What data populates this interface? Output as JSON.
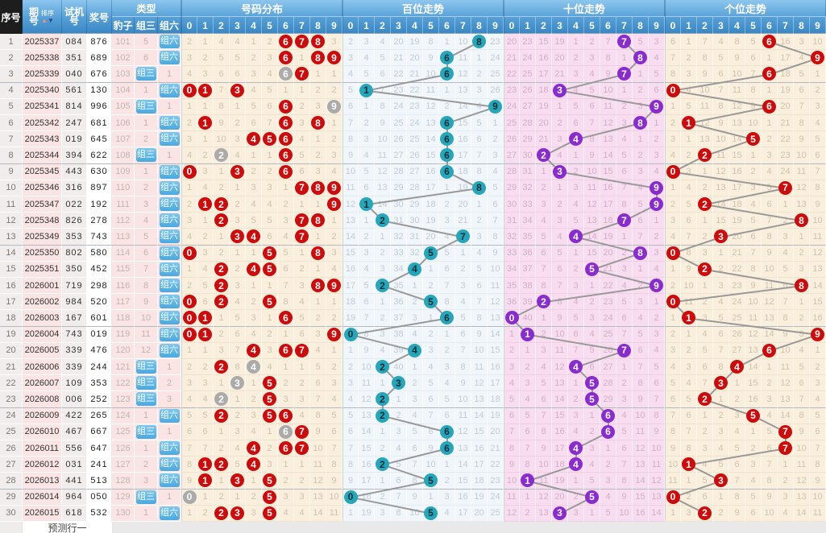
{
  "colors": {
    "header_black_bg": "#1d1d1d",
    "header_blue_top": "#8cc6ee",
    "header_blue_bottom": "#3a87c4",
    "hit_red": "#cf0a0a",
    "hit_gray": "#ababab",
    "hit_teal": "#25a6bb",
    "hit_purple": "#8a2bd0",
    "type_button_blue": "#49a9e0",
    "line_gray": "#999999"
  },
  "header": {
    "seq": "序号",
    "period_l1": "期",
    "period_l2": "号",
    "sort": "排序",
    "test_l1": "试机",
    "test_l2": "号",
    "prize": "奖号",
    "type_group": "类型",
    "type_cols": [
      "豹子",
      "组三",
      "组六"
    ],
    "sections": [
      {
        "key": "fen",
        "title": "号码分布"
      },
      {
        "key": "bai",
        "title": "百位走势"
      },
      {
        "key": "shi",
        "title": "十位走势"
      },
      {
        "key": "ge",
        "title": "个位走势"
      }
    ],
    "digits": [
      "0",
      "1",
      "2",
      "3",
      "4",
      "5",
      "6",
      "7",
      "8",
      "9"
    ]
  },
  "footer": {
    "label": "预测行一"
  },
  "icons": {
    "sort_up": "▲",
    "sort_down": "▼"
  },
  "chart_data": {
    "type": "table",
    "legend": "H=hit circle (red/teal/purple per section), G=gray circle (digit appears twice); plain numbers are miss counts",
    "rows": [
      {
        "seq": "1",
        "period": "2025337",
        "test": "084",
        "prize": "876",
        "baozi": "101",
        "zu3": "5",
        "zu6": "组六",
        "fen": "2,1,4,4,1,2,H6,H7,H8,3",
        "bai": "2,3,4,20,19,8,1,10,H8,23",
        "shi": "20,23,15,19,1,2,7,H7,5,3",
        "ge": "6,1,7,4,8,5,H6,16,3,10"
      },
      {
        "seq": "2",
        "period": "2025338",
        "test": "351",
        "prize": "689",
        "baozi": "102",
        "zu3": "6",
        "zu6": "组六",
        "fen": "3,2,5,5,2,3,H6,1,H8,H9",
        "bai": "3,4,5,21,20,9,H6,11,1,24",
        "shi": "21,24,16,20,2,3,8,1,H8,4",
        "ge": "7,2,8,5,9,6,1,17,4,H9"
      },
      {
        "seq": "3",
        "period": "2025339",
        "test": "040",
        "prize": "676",
        "baozi": "103",
        "zu3": "组三",
        "zu6": "1",
        "fen": "4,3,6,6,3,4,G6,H7,1,1",
        "bai": "4,5,6,22,21,10,H6,12,2,25",
        "shi": "22,25,17,21,3,4,9,H7,1,5",
        "ge": "8,3,9,6,10,7,H6,18,5,1"
      },
      {
        "seq": "4",
        "period": "2025340",
        "test": "561",
        "prize": "130",
        "baozi": "104",
        "zu3": "1",
        "zu6": "组六",
        "fen": "H0,H1,7,H3,4,5,1,1,2,2",
        "bai": "5,H1,7,23,22,11,1,13,3,26",
        "shi": "23,26,18,H3,4,5,10,1,2,6",
        "ge": "H0,4,10,7,11,8,1,19,6,2"
      },
      {
        "seq": "5",
        "period": "2025341",
        "test": "814",
        "prize": "996",
        "baozi": "105",
        "zu3": "组三",
        "zu6": "1",
        "fen": "1,1,8,1,5,6,H6,2,3,G9",
        "bai": "6,1,8,24,23,12,2,14,4,H9",
        "shi": "24,27,19,1,5,6,11,2,3,H9",
        "ge": "1,5,11,8,12,9,H6,20,7,3"
      },
      {
        "seq": "6",
        "period": "2025342",
        "test": "247",
        "prize": "681",
        "baozi": "106",
        "zu3": "1",
        "zu6": "组六",
        "fen": "2,H1,9,2,6,7,H6,3,H8,1",
        "bai": "7,2,9,25,24,13,H6,15,5,1",
        "shi": "25,28,20,2,6,7,12,3,H8,1",
        "ge": "2,H1,12,9,13,10,1,21,8,4"
      },
      {
        "seq": "7",
        "period": "2025343",
        "test": "019",
        "prize": "645",
        "baozi": "107",
        "zu3": "2",
        "zu6": "组六",
        "fen": "3,1,10,3,H4,H5,H6,4,1,2",
        "bai": "8,3,10,26,25,14,H6,16,6,2",
        "shi": "26,29,21,3,H4,8,13,4,1,2",
        "ge": "3,1,13,10,14,H5,2,22,9,5"
      },
      {
        "seq": "8",
        "period": "2025344",
        "test": "394",
        "prize": "622",
        "baozi": "108",
        "zu3": "组三",
        "zu6": "1",
        "fen": "4,2,G2,4,1,1,H6,5,2,3",
        "bai": "9,4,11,27,26,15,H6,17,7,3",
        "shi": "27,30,H2,4,1,9,14,5,2,3",
        "ge": "4,2,H2,11,15,1,3,23,10,6"
      },
      {
        "seq": "9",
        "period": "2025345",
        "test": "443",
        "prize": "630",
        "baozi": "109",
        "zu3": "1",
        "zu6": "组六",
        "fen": "H0,3,1,H3,2,2,H6,6,3,4",
        "bai": "10,5,12,28,27,16,H6,18,8,4",
        "shi": "28,31,1,H3,2,10,15,6,3,4",
        "ge": "H0,3,1,12,16,2,4,24,11,7"
      },
      {
        "seq": "10",
        "period": "2025346",
        "test": "316",
        "prize": "897",
        "baozi": "110",
        "zu3": "2",
        "zu6": "组六",
        "fen": "1,4,2,1,3,3,1,H7,H8,H9",
        "bai": "11,6,13,29,28,17,1,19,H8,5",
        "shi": "29,32,2,1,3,11,16,7,4,H9",
        "ge": "1,4,2,13,17,3,5,H7,12,8"
      },
      {
        "seq": "11",
        "period": "2025347",
        "test": "022",
        "prize": "192",
        "baozi": "111",
        "zu3": "3",
        "zu6": "组六",
        "fen": "2,H1,H2,2,4,4,2,1,1,H9",
        "bai": "12,H1,14,30,29,18,2,20,1,6",
        "shi": "30,33,3,2,4,12,17,8,5,H9",
        "ge": "2,5,H2,14,18,4,6,1,13,9"
      },
      {
        "seq": "12",
        "period": "2025348",
        "test": "826",
        "prize": "278",
        "baozi": "112",
        "zu3": "4",
        "zu6": "组六",
        "fen": "3,1,H2,3,5,5,3,H7,H8,1",
        "bai": "13,1,H2,31,30,19,3,21,2,7",
        "shi": "31,34,4,3,5,13,18,H7,6,1",
        "ge": "3,6,1,15,19,5,7,2,H8,10"
      },
      {
        "seq": "13",
        "period": "2025349",
        "test": "353",
        "prize": "743",
        "baozi": "113",
        "zu3": "5",
        "zu6": "组六",
        "fen": "4,2,1,H3,H4,6,4,H7,1,2",
        "bai": "14,2,1,32,31,20,4,H7,3,8",
        "shi": "32,35,5,4,H4,14,19,1,7,2",
        "ge": "4,7,2,H3,20,6,8,3,1,11"
      },
      {
        "seq": "14",
        "period": "2025350",
        "test": "802",
        "prize": "580",
        "baozi": "114",
        "zu3": "6",
        "zu6": "组六",
        "fen": "H0,3,2,1,1,H5,5,1,H8,3",
        "bai": "15,3,2,33,32,H5,5,1,4,9",
        "shi": "33,36,6,5,1,15,20,2,H8,3",
        "ge": "H0,8,3,1,21,7,9,4,2,12"
      },
      {
        "seq": "15",
        "period": "2025351",
        "test": "350",
        "prize": "452",
        "baozi": "115",
        "zu3": "7",
        "zu6": "组六",
        "fen": "1,4,H2,2,H4,H5,6,2,1,4",
        "bai": "16,4,3,34,H4,1,6,2,5,10",
        "shi": "34,37,7,6,2,H5,21,3,1,4",
        "ge": "1,9,H2,2,22,8,10,5,3,13"
      },
      {
        "seq": "16",
        "period": "2026001",
        "test": "719",
        "prize": "298",
        "baozi": "116",
        "zu3": "8",
        "zu6": "组六",
        "fen": "2,5,H2,3,1,1,7,3,H8,H9",
        "bai": "17,5,H2,35,1,2,7,3,6,11",
        "shi": "35,38,8,7,3,1,22,4,2,H9",
        "ge": "2,10,1,3,23,9,11,6,H8,14"
      },
      {
        "seq": "17",
        "period": "2026002",
        "test": "984",
        "prize": "520",
        "baozi": "117",
        "zu3": "9",
        "zu6": "组六",
        "fen": "H0,6,H2,4,2,H5,8,4,1,1",
        "bai": "18,6,1,36,2,H5,8,4,7,12",
        "shi": "36,39,H2,8,4,2,23,5,3,1",
        "ge": "H0,11,2,4,24,10,12,7,1,15"
      },
      {
        "seq": "18",
        "period": "2026003",
        "test": "167",
        "prize": "601",
        "baozi": "118",
        "zu3": "10",
        "zu6": "组六",
        "fen": "H0,H1,1,5,3,1,H6,5,2,2",
        "bai": "19,7,2,37,3,1,H6,5,8,13",
        "shi": "H0,40,1,9,5,3,24,6,4,2",
        "ge": "1,H1,3,5,25,11,13,8,2,16"
      },
      {
        "seq": "19",
        "period": "2026004",
        "test": "743",
        "prize": "019",
        "baozi": "119",
        "zu3": "11",
        "zu6": "组六",
        "fen": "H0,H1,2,6,4,2,1,6,3,H9",
        "bai": "H0,8,3,38,4,2,1,6,9,14",
        "shi": "1,H1,2,10,6,4,25,7,5,3",
        "ge": "2,1,4,6,26,12,14,9,3,H9"
      },
      {
        "seq": "20",
        "period": "2026005",
        "test": "339",
        "prize": "476",
        "baozi": "120",
        "zu3": "12",
        "zu6": "组六",
        "fen": "1,1,3,7,H4,3,H6,H7,4,1",
        "bai": "1,9,4,39,H4,3,2,7,10,15",
        "shi": "2,1,3,11,7,5,26,H7,6,4",
        "ge": "3,2,5,7,27,13,H6,10,4,1"
      },
      {
        "seq": "21",
        "period": "2026006",
        "test": "339",
        "prize": "244",
        "baozi": "121",
        "zu3": "组三",
        "zu6": "1",
        "fen": "2,2,H2,8,G4,4,1,1,5,2",
        "bai": "2,10,H2,40,1,4,3,8,11,16",
        "shi": "3,2,4,12,H4,6,27,1,7,5",
        "ge": "4,3,6,8,H4,14,1,11,5,2"
      },
      {
        "seq": "22",
        "period": "2026007",
        "test": "109",
        "prize": "353",
        "baozi": "122",
        "zu3": "组三",
        "zu6": "2",
        "fen": "3,3,1,G3,1,H5,2,2,6,3",
        "bai": "3,11,1,H3,2,5,4,9,12,17",
        "shi": "4,3,5,13,1,H5,28,2,8,6",
        "ge": "5,4,7,H3,1,15,2,12,6,3"
      },
      {
        "seq": "23",
        "period": "2026008",
        "test": "006",
        "prize": "252",
        "baozi": "123",
        "zu3": "组三",
        "zu6": "3",
        "fen": "4,4,G2,1,2,H5,3,3,7,4",
        "bai": "4,12,H2,1,3,6,5,10,13,18",
        "shi": "5,4,6,14,2,H5,29,3,9,7",
        "ge": "6,5,H2,1,2,16,3,13,7,4"
      },
      {
        "seq": "24",
        "period": "2026009",
        "test": "422",
        "prize": "265",
        "baozi": "124",
        "zu3": "1",
        "zu6": "组六",
        "fen": "5,5,H2,2,3,H5,H6,4,8,5",
        "bai": "5,13,H2,2,4,7,6,11,14,19",
        "shi": "6,5,7,15,3,1,H6,4,10,8",
        "ge": "7,6,1,2,3,H5,4,14,8,5"
      },
      {
        "seq": "25",
        "period": "2026010",
        "test": "467",
        "prize": "667",
        "baozi": "125",
        "zu3": "组三",
        "zu6": "1",
        "fen": "6,6,1,3,4,1,G6,H7,9,6",
        "bai": "6,14,1,3,5,8,H6,12,15,20",
        "shi": "7,6,8,16,4,2,H6,5,11,9",
        "ge": "8,7,2,3,4,1,5,H7,9,6"
      },
      {
        "seq": "26",
        "period": "2026011",
        "test": "556",
        "prize": "647",
        "baozi": "126",
        "zu3": "1",
        "zu6": "组六",
        "fen": "7,7,2,4,H4,2,H6,H7,10,7",
        "bai": "7,15,2,4,6,9,H6,13,16,21",
        "shi": "8,7,9,17,H4,3,1,6,12,10",
        "ge": "9,8,3,4,5,2,6,H7,10,7"
      },
      {
        "seq": "27",
        "period": "2026012",
        "test": "031",
        "prize": "241",
        "baozi": "127",
        "zu3": "2",
        "zu6": "组六",
        "fen": "8,H1,H2,5,H4,3,1,1,11,8",
        "bai": "8,16,H2,5,7,10,1,14,17,22",
        "shi": "9,8,10,18,H4,4,2,7,13,11",
        "ge": "10,H1,4,5,6,3,7,1,11,8"
      },
      {
        "seq": "28",
        "period": "2026013",
        "test": "441",
        "prize": "513",
        "baozi": "128",
        "zu3": "3",
        "zu6": "组六",
        "fen": "9,H1,1,H3,1,H5,2,2,12,9",
        "bai": "9,17,1,6,8,H5,2,15,18,23",
        "shi": "10,H1,11,19,1,5,3,8,14,12",
        "ge": "11,1,5,H3,7,4,8,2,12,9"
      },
      {
        "seq": "29",
        "period": "2026014",
        "test": "964",
        "prize": "050",
        "baozi": "129",
        "zu3": "组三",
        "zu6": "1",
        "fen": "G0,1,2,1,2,H5,3,3,13,10",
        "bai": "H0,18,2,7,9,1,3,16,19,24",
        "shi": "11,1,12,20,2,H5,4,9,15,13",
        "ge": "H0,2,6,1,8,5,9,3,13,10"
      },
      {
        "seq": "30",
        "period": "2026015",
        "test": "618",
        "prize": "532",
        "baozi": "130",
        "zu3": "1",
        "zu6": "组六",
        "fen": "1,2,H2,H3,3,H5,4,4,14,11",
        "bai": "1,19,3,8,10,H5,4,17,20,25",
        "shi": "12,2,13,H3,3,1,5,10,16,14",
        "ge": "1,3,H2,2,9,6,10,4,14,11"
      }
    ]
  }
}
